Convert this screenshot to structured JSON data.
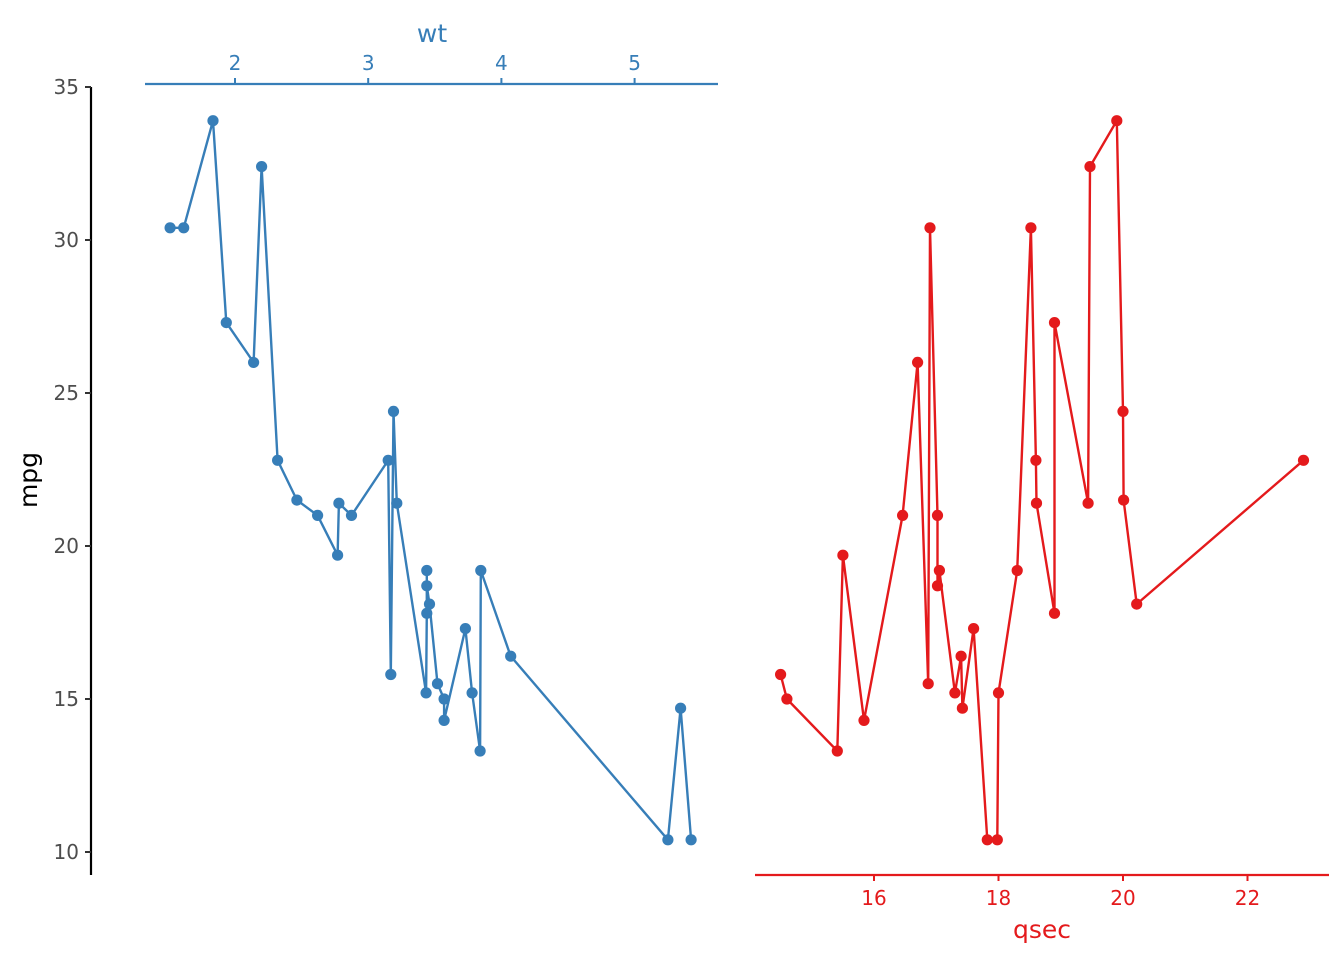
{
  "chart_data": {
    "type": "line",
    "y_axis": {
      "label": "mpg",
      "ylim": [
        9,
        35
      ],
      "ticks": [
        10,
        15,
        20,
        25,
        30,
        35
      ]
    },
    "series": [
      {
        "name": "wt",
        "color": "#377EB8",
        "x_axis_position": "top",
        "xlim": [
          1.2,
          5.6
        ],
        "x_ticks": [
          2,
          3,
          4,
          5
        ],
        "x": [
          1.513,
          1.615,
          1.835,
          1.935,
          2.14,
          2.2,
          2.32,
          2.465,
          2.62,
          2.77,
          2.78,
          2.875,
          3.15,
          3.17,
          3.19,
          3.215,
          3.435,
          3.44,
          3.44,
          3.44,
          3.46,
          3.52,
          3.57,
          3.57,
          3.73,
          3.78,
          3.84,
          3.845,
          4.07,
          5.25,
          5.345,
          5.424
        ],
        "y": [
          30.4,
          30.4,
          33.9,
          27.3,
          26.0,
          32.4,
          22.8,
          21.5,
          21.0,
          19.7,
          21.4,
          21.0,
          22.8,
          15.8,
          24.4,
          21.4,
          15.2,
          17.8,
          19.2,
          18.7,
          18.1,
          15.5,
          15.0,
          14.3,
          17.3,
          15.2,
          13.3,
          19.2,
          16.4,
          10.4,
          14.7,
          10.4
        ]
      },
      {
        "name": "qsec",
        "color": "#E41A1C",
        "x_axis_position": "bottom",
        "xlim": [
          14.2,
          23.5
        ],
        "x_ticks": [
          16,
          18,
          20,
          22
        ],
        "x": [
          14.5,
          14.6,
          15.41,
          15.5,
          15.84,
          16.46,
          16.7,
          16.87,
          16.9,
          17.02,
          17.02,
          17.05,
          17.3,
          17.4,
          17.42,
          17.6,
          17.82,
          17.98,
          18.0,
          18.3,
          18.52,
          18.6,
          18.61,
          18.9,
          18.9,
          19.44,
          19.47,
          19.9,
          20.0,
          20.01,
          20.22,
          22.9
        ],
        "y": [
          15.8,
          15.0,
          13.3,
          19.7,
          14.3,
          21.0,
          26.0,
          15.5,
          30.4,
          21.0,
          18.7,
          19.2,
          15.2,
          16.4,
          14.7,
          17.3,
          10.4,
          10.4,
          15.2,
          19.2,
          30.4,
          22.8,
          21.4,
          17.8,
          27.3,
          21.4,
          32.4,
          33.9,
          24.4,
          21.5,
          18.1,
          22.8
        ]
      }
    ],
    "grid": false,
    "legend": "none"
  }
}
